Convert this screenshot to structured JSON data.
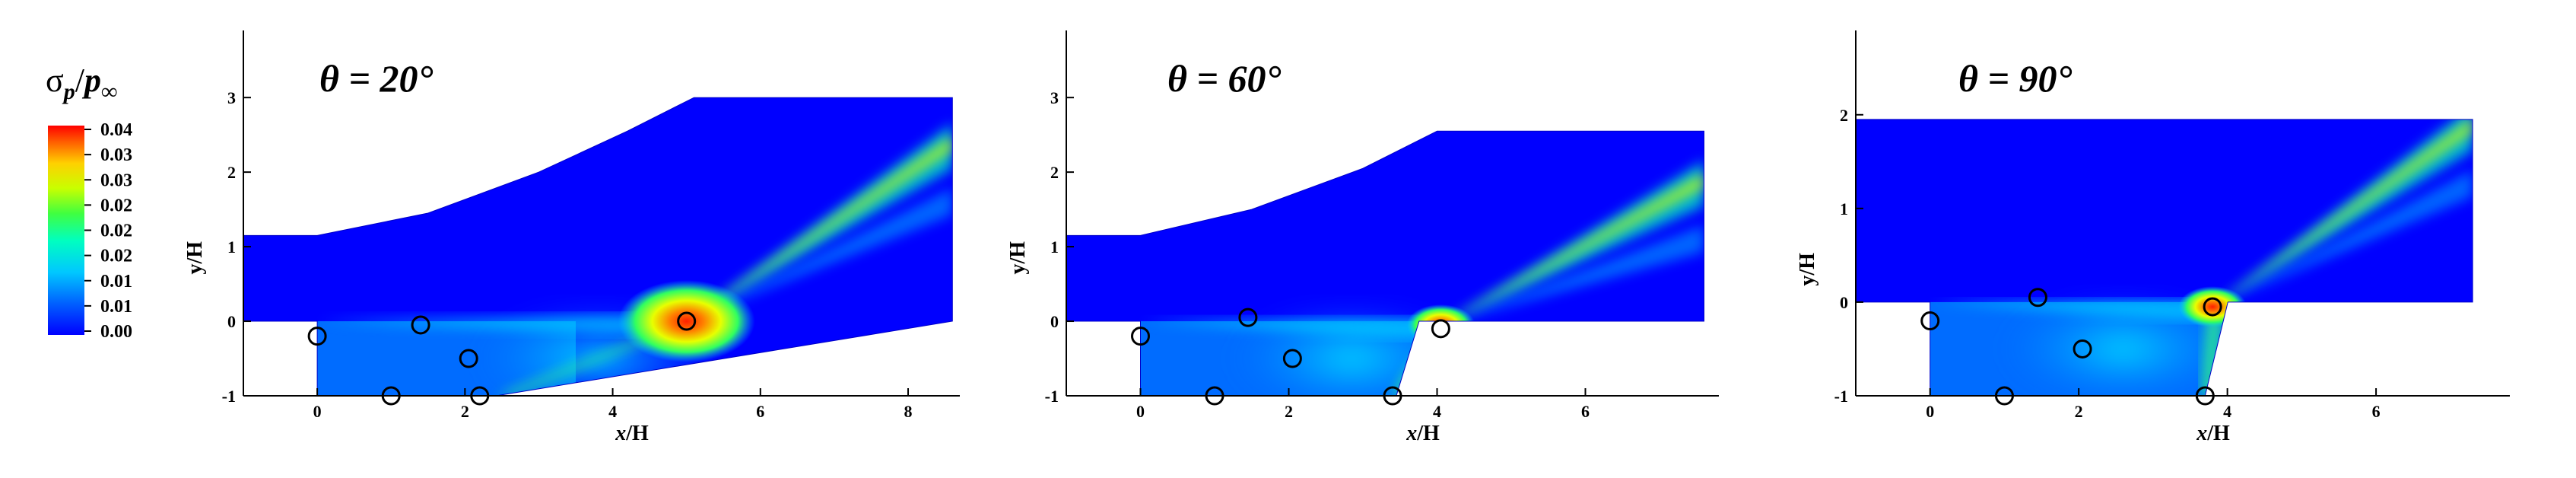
{
  "chart_data": {
    "type": "contour",
    "colorbar": {
      "title_prefix": "σ",
      "title_sub": "p",
      "title_slash": "/",
      "title_p": "p",
      "title_infsub": "∞",
      "ticks": [
        "0.04",
        "0.03",
        "0.03",
        "0.02",
        "0.02",
        "0.02",
        "0.01",
        "0.01",
        "0.00"
      ],
      "range": [
        0.0,
        0.04
      ],
      "colors": [
        "#0000ff",
        "#0060ff",
        "#00c8ff",
        "#00ffc0",
        "#40ff40",
        "#c8ff00",
        "#ffd000",
        "#ff6000",
        "#ff0000"
      ]
    },
    "panels": [
      {
        "title": "θ = 20°",
        "xlabel_x": "x",
        "xlabel_rest": "/H",
        "ylabel": "y/H",
        "xlim": [
          -1,
          8.7
        ],
        "ylim": [
          -1,
          3.9
        ],
        "xticks": [
          "0",
          "2",
          "4",
          "6",
          "8"
        ],
        "yticks": [
          "-1",
          "0",
          "1",
          "2",
          "3"
        ],
        "ramp_angle_deg": 20,
        "upper_wall": [
          [
            -1,
            1.15
          ],
          [
            0,
            1.15
          ],
          [
            1.5,
            1.45
          ],
          [
            3,
            2.0
          ],
          [
            4.2,
            2.55
          ],
          [
            5.1,
            3.0
          ],
          [
            8.6,
            3.0
          ]
        ],
        "domain_right": 8.6,
        "lower_wall": [
          [
            0,
            -1
          ],
          [
            0,
            0
          ],
          [
            8.6,
            0
          ]
        ],
        "shock_foot": [
          2.5,
          -1.0
        ],
        "hotspot": [
          5.0,
          0.0
        ],
        "markers": [
          [
            0.0,
            -0.2
          ],
          [
            1.4,
            -0.05
          ],
          [
            2.05,
            -0.5
          ],
          [
            5.0,
            0.0
          ],
          [
            1.0,
            -1.0
          ],
          [
            2.2,
            -1.0
          ]
        ]
      },
      {
        "title": "θ = 60°",
        "xlabel_x": "x",
        "xlabel_rest": "/H",
        "ylabel": "y/H",
        "xlim": [
          -1,
          7.8
        ],
        "ylim": [
          -1,
          3.9
        ],
        "xticks": [
          "0",
          "2",
          "4",
          "6"
        ],
        "yticks": [
          "-1",
          "0",
          "1",
          "2",
          "3"
        ],
        "ramp_angle_deg": 60,
        "upper_wall": [
          [
            -1,
            1.15
          ],
          [
            0,
            1.15
          ],
          [
            1.5,
            1.5
          ],
          [
            3,
            2.05
          ],
          [
            4.0,
            2.55
          ],
          [
            7.6,
            2.55
          ]
        ],
        "domain_right": 7.6,
        "lower_wall": [
          [
            0,
            -1
          ],
          [
            0,
            0
          ],
          [
            7.6,
            0
          ]
        ],
        "shock_foot": [
          3.45,
          -1.0
        ],
        "hotspot": [
          4.05,
          -0.05
        ],
        "markers": [
          [
            0.0,
            -0.2
          ],
          [
            1.45,
            0.05
          ],
          [
            2.05,
            -0.5
          ],
          [
            4.05,
            -0.1
          ],
          [
            1.0,
            -1.0
          ],
          [
            3.4,
            -1.0
          ]
        ]
      },
      {
        "title": "θ = 90°",
        "xlabel_x": "x",
        "xlabel_rest": "/H",
        "ylabel": "y/H",
        "xlim": [
          -1,
          7.8
        ],
        "ylim": [
          -1,
          2.9
        ],
        "xticks": [
          "0",
          "2",
          "4",
          "6"
        ],
        "yticks": [
          "-1",
          "0",
          "1",
          "2"
        ],
        "ramp_angle_deg": 90,
        "upper_wall": [
          [
            -1,
            1.95
          ],
          [
            7.3,
            1.95
          ]
        ],
        "domain_right": 7.3,
        "lower_wall": [
          [
            0,
            -1
          ],
          [
            0,
            0
          ],
          [
            7.3,
            0
          ]
        ],
        "shock_foot": [
          3.7,
          -1.0
        ],
        "hotspot": [
          3.8,
          -0.05
        ],
        "markers": [
          [
            0.0,
            -0.2
          ],
          [
            1.45,
            0.05
          ],
          [
            2.05,
            -0.5
          ],
          [
            3.8,
            -0.05
          ],
          [
            1.0,
            -1.0
          ],
          [
            3.7,
            -1.0
          ]
        ]
      }
    ]
  }
}
